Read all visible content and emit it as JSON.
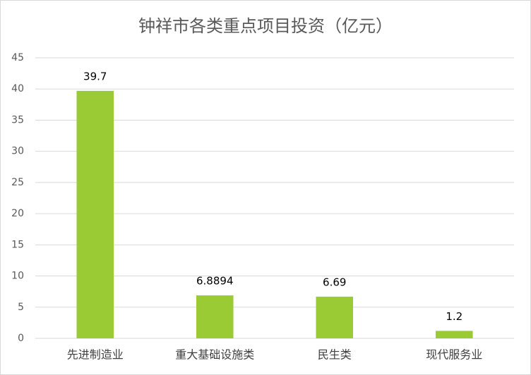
{
  "chart_data": {
    "type": "bar",
    "title": "钟祥市各类重点项目投资（亿元）",
    "categories": [
      "先进制造业",
      "重大基础设施类",
      "民生类",
      "现代服务业"
    ],
    "values": [
      39.7,
      6.8894,
      6.69,
      1.2
    ],
    "color": "#9acb34",
    "ylim": [
      0,
      45
    ],
    "yticks": [
      0,
      5,
      10,
      15,
      20,
      25,
      30,
      35,
      40,
      45
    ],
    "grid": true
  }
}
